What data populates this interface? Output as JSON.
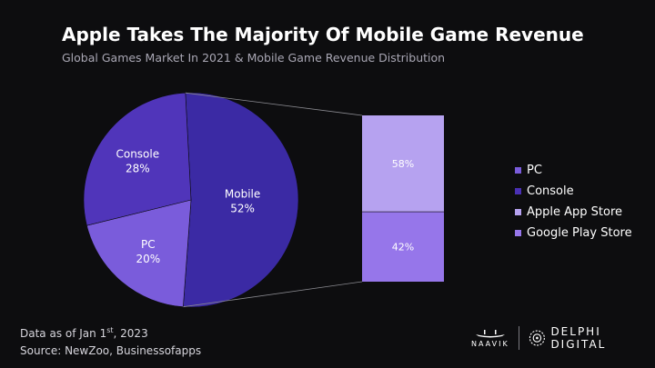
{
  "header": {
    "title": "Apple Takes The Majority Of Mobile Game Revenue",
    "subtitle": "Global Games Market In 2021 & Mobile Game Revenue Distribution"
  },
  "colors": {
    "mobile": "#3b2aa4",
    "console": "#5035ba",
    "pc": "#7a5cdb",
    "apple_app_store": "#b6a2f0",
    "google_play_store": "#9676ea",
    "connector": "#8a8a90",
    "label_text": "#ffffff"
  },
  "chart_data": [
    {
      "type": "pie",
      "categories": [
        "Mobile",
        "PC",
        "Console"
      ],
      "values": [
        52,
        20,
        28
      ],
      "labels": [
        "52%",
        "20%",
        "28%"
      ]
    },
    {
      "type": "bar",
      "stacked": true,
      "categories": [
        "Apple App Store",
        "Google Play Store"
      ],
      "values": [
        58,
        42
      ],
      "labels": [
        "58%",
        "42%"
      ]
    }
  ],
  "legend": {
    "items": [
      {
        "label": "PC",
        "color": "#7a5cdb"
      },
      {
        "label": "Console",
        "color": "#4a30b4"
      },
      {
        "label": "Apple App Store",
        "color": "#b6a2f0"
      },
      {
        "label": "Google Play Store",
        "color": "#9676ea"
      }
    ]
  },
  "footer": {
    "date_prefix": "Data as of Jan 1",
    "date_sup": "st",
    "date_suffix": ", 2023",
    "source": "Source: NewZoo, Businessofapps"
  },
  "logos": {
    "naavik": "NAAVIK",
    "delphi": "DELPHI DIGITAL"
  }
}
